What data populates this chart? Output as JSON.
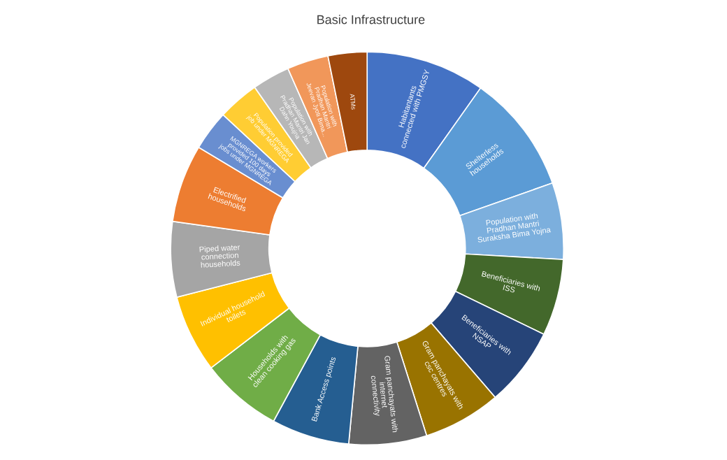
{
  "chart_data": {
    "type": "donut",
    "title": "Basic Infrastructure",
    "categories": [
      "Habitantants connected with PMGSY",
      "Shelterless households",
      "Population with Pradhan Mantri Suraksha Bima Yojna",
      "Beneficiaries with ISS",
      "Beneficiaries with NSAP",
      "Gram panchayats with csc centres",
      "Gram panchayats with internet connectivity",
      "Bank Access points",
      "Households with clean cooking gas",
      "Individual household toilets",
      "Piped water connection households",
      "Electrified households",
      "MGNREGA workers provided 100 days jobs under MGNREGA",
      "Population provided job under MGNREGA",
      "Population with Pradhan Mantri Jan Dahn Youjna",
      "Population with Pradhan Mantri Jeevan Jyoti Bima...",
      "ATMs"
    ],
    "values": [
      9.8,
      9.8,
      6.3,
      6.3,
      6.5,
      6.4,
      6.4,
      6.4,
      6.7,
      6.4,
      6.2,
      6.4,
      3.3,
      3.4,
      3.1,
      3.4,
      3.2
    ],
    "colors": [
      "#4472c4",
      "#5b9bd5",
      "#7cafdd",
      "#43682b",
      "#264478",
      "#997300",
      "#636363",
      "#255e91",
      "#70ad47",
      "#ffc000",
      "#a5a5a5",
      "#ed7d31",
      "#698ed0",
      "#ffcd33",
      "#b7b7b7",
      "#f1975a",
      "#9e480e"
    ],
    "legend": false
  }
}
